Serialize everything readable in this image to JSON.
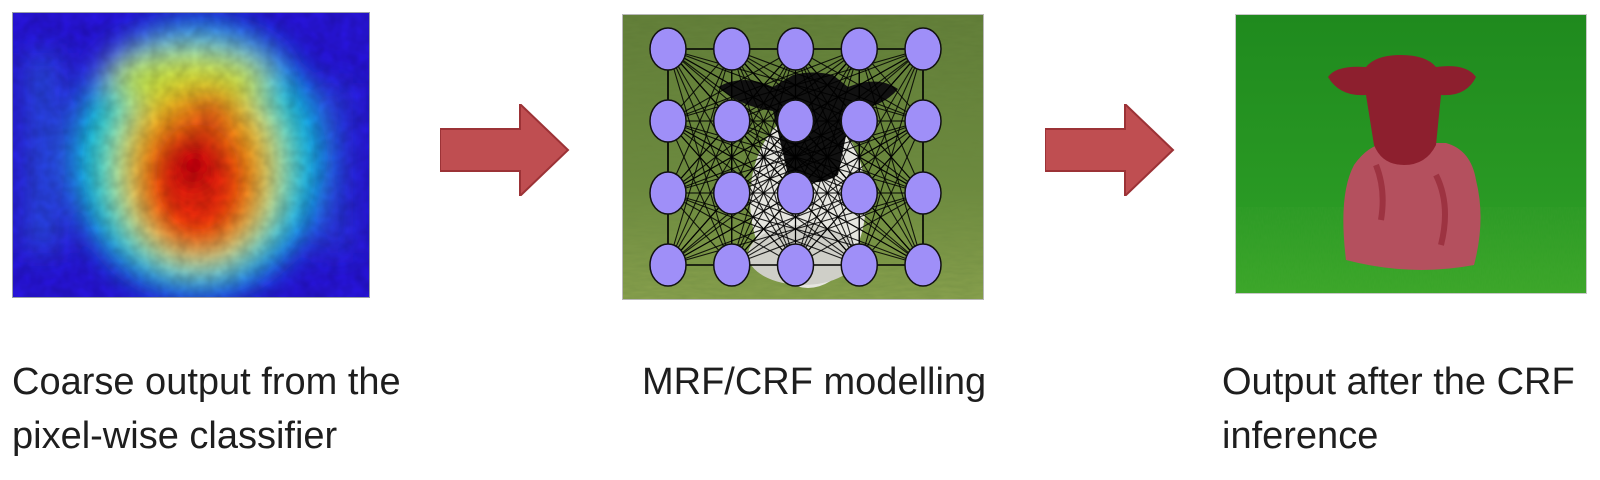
{
  "panels": [
    {
      "id": "heatmap",
      "kind": "coarse-heatmap"
    },
    {
      "id": "graph",
      "kind": "crf-graph-overlay",
      "grid": {
        "rows": 4,
        "cols": 5
      },
      "node_color": "#9f8ff8"
    },
    {
      "id": "output",
      "kind": "segmentation-output",
      "overlay_color": "#a0283a"
    }
  ],
  "arrows": [
    {
      "from": "heatmap",
      "to": "graph",
      "color": "#bf4e51"
    },
    {
      "from": "graph",
      "to": "output",
      "color": "#bf4e51"
    }
  ],
  "captions": {
    "coarse": {
      "line1": "Coarse output from the",
      "line2": "pixel-wise classifier"
    },
    "crf": {
      "line1": "MRF/CRF modelling"
    },
    "output": {
      "line1": "Output after the CRF",
      "line2": "inference"
    }
  }
}
